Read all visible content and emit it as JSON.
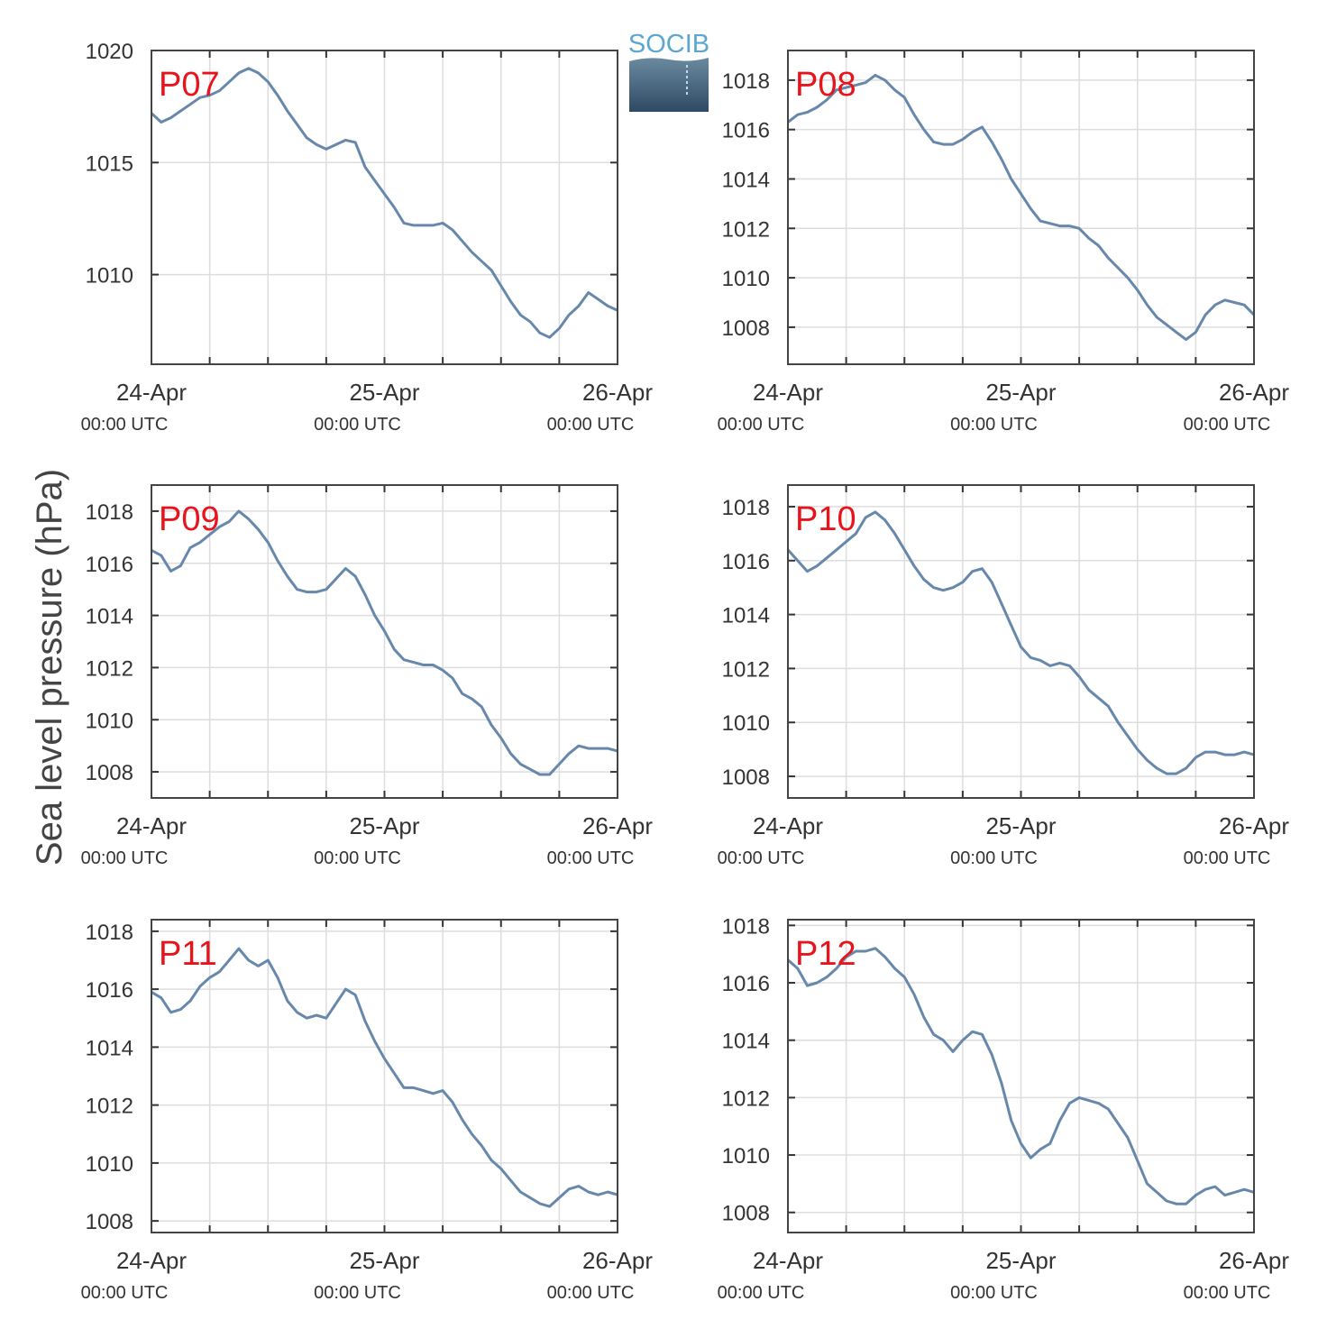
{
  "figure": {
    "ylabel": "Sea level pressure (hPa)",
    "logo_text": "SOCIB",
    "line_color": "#6788ab",
    "label_color": "#e8141c",
    "grid_color": "#dddddd"
  },
  "chart_data": [
    {
      "type": "line",
      "title": "P07",
      "xlim": [
        "24-Apr 00:00 UTC",
        "26-Apr 00:00 UTC"
      ],
      "xticks": [
        {
          "date": "24-Apr",
          "time": "00:00 UTC"
        },
        {
          "date": "25-Apr",
          "time": "00:00 UTC"
        },
        {
          "date": "26-Apr",
          "time": "00:00 UTC"
        }
      ],
      "ylim": [
        1006,
        1020
      ],
      "yticks": [
        1010,
        1015,
        1020
      ],
      "grid": true,
      "series": [
        {
          "x_hours": [
            0,
            1,
            2,
            3,
            4,
            5,
            6,
            7,
            8,
            9,
            10,
            11,
            12,
            13,
            14,
            15,
            16,
            17,
            18,
            19,
            20,
            21,
            22,
            23,
            24,
            25,
            26,
            27,
            28,
            29,
            30,
            31,
            32,
            33,
            34,
            35,
            36,
            37,
            38,
            39,
            40,
            41,
            42,
            43,
            44,
            45,
            46,
            47,
            48
          ],
          "values": [
            1017.2,
            1016.8,
            1017.0,
            1017.3,
            1017.6,
            1017.9,
            1018.0,
            1018.2,
            1018.6,
            1019.0,
            1019.2,
            1019.0,
            1018.6,
            1018.0,
            1017.3,
            1016.7,
            1016.1,
            1015.8,
            1015.6,
            1015.8,
            1016.0,
            1015.9,
            1014.8,
            1014.2,
            1013.6,
            1013.0,
            1012.3,
            1012.2,
            1012.2,
            1012.2,
            1012.3,
            1012.0,
            1011.5,
            1011.0,
            1010.6,
            1010.2,
            1009.5,
            1008.8,
            1008.2,
            1007.9,
            1007.4,
            1007.2,
            1007.6,
            1008.2,
            1008.6,
            1009.2,
            1008.9,
            1008.6,
            1008.4
          ]
        }
      ]
    },
    {
      "type": "line",
      "title": "P08",
      "xlim": [
        "24-Apr 00:00 UTC",
        "26-Apr 00:00 UTC"
      ],
      "xticks": [
        {
          "date": "24-Apr",
          "time": "00:00 UTC"
        },
        {
          "date": "25-Apr",
          "time": "00:00 UTC"
        },
        {
          "date": "26-Apr",
          "time": "00:00 UTC"
        }
      ],
      "ylim": [
        1006.5,
        1019.2
      ],
      "yticks": [
        1008,
        1010,
        1012,
        1014,
        1016,
        1018
      ],
      "grid": true,
      "series": [
        {
          "x_hours": [
            0,
            1,
            2,
            3,
            4,
            5,
            6,
            7,
            8,
            9,
            10,
            11,
            12,
            13,
            14,
            15,
            16,
            17,
            18,
            19,
            20,
            21,
            22,
            23,
            24,
            25,
            26,
            27,
            28,
            29,
            30,
            31,
            32,
            33,
            34,
            35,
            36,
            37,
            38,
            39,
            40,
            41,
            42,
            43,
            44,
            45,
            46,
            47,
            48
          ],
          "values": [
            1016.3,
            1016.6,
            1016.7,
            1016.9,
            1017.2,
            1017.6,
            1017.7,
            1017.8,
            1017.9,
            1018.2,
            1018.0,
            1017.6,
            1017.3,
            1016.6,
            1016.0,
            1015.5,
            1015.4,
            1015.4,
            1015.6,
            1015.9,
            1016.1,
            1015.5,
            1014.8,
            1014.0,
            1013.4,
            1012.8,
            1012.3,
            1012.2,
            1012.1,
            1012.1,
            1012.0,
            1011.6,
            1011.3,
            1010.8,
            1010.4,
            1010.0,
            1009.5,
            1008.9,
            1008.4,
            1008.1,
            1007.8,
            1007.5,
            1007.8,
            1008.5,
            1008.9,
            1009.1,
            1009.0,
            1008.9,
            1008.5
          ]
        }
      ]
    },
    {
      "type": "line",
      "title": "P09",
      "xlim": [
        "24-Apr 00:00 UTC",
        "26-Apr 00:00 UTC"
      ],
      "xticks": [
        {
          "date": "24-Apr",
          "time": "00:00 UTC"
        },
        {
          "date": "25-Apr",
          "time": "00:00 UTC"
        },
        {
          "date": "26-Apr",
          "time": "00:00 UTC"
        }
      ],
      "ylim": [
        1007,
        1019
      ],
      "yticks": [
        1008,
        1010,
        1012,
        1014,
        1016,
        1018
      ],
      "grid": true,
      "series": [
        {
          "x_hours": [
            0,
            1,
            2,
            3,
            4,
            5,
            6,
            7,
            8,
            9,
            10,
            11,
            12,
            13,
            14,
            15,
            16,
            17,
            18,
            19,
            20,
            21,
            22,
            23,
            24,
            25,
            26,
            27,
            28,
            29,
            30,
            31,
            32,
            33,
            34,
            35,
            36,
            37,
            38,
            39,
            40,
            41,
            42,
            43,
            44,
            45,
            46,
            47,
            48
          ],
          "values": [
            1016.5,
            1016.3,
            1015.7,
            1015.9,
            1016.6,
            1016.8,
            1017.1,
            1017.4,
            1017.6,
            1018.0,
            1017.7,
            1017.3,
            1016.8,
            1016.1,
            1015.5,
            1015.0,
            1014.9,
            1014.9,
            1015.0,
            1015.4,
            1015.8,
            1015.5,
            1014.8,
            1014.0,
            1013.4,
            1012.7,
            1012.3,
            1012.2,
            1012.1,
            1012.1,
            1011.9,
            1011.6,
            1011.0,
            1010.8,
            1010.5,
            1009.8,
            1009.3,
            1008.7,
            1008.3,
            1008.1,
            1007.9,
            1007.9,
            1008.3,
            1008.7,
            1009.0,
            1008.9,
            1008.9,
            1008.9,
            1008.8
          ]
        }
      ]
    },
    {
      "type": "line",
      "title": "P10",
      "xlim": [
        "24-Apr 00:00 UTC",
        "26-Apr 00:00 UTC"
      ],
      "xticks": [
        {
          "date": "24-Apr",
          "time": "00:00 UTC"
        },
        {
          "date": "25-Apr",
          "time": "00:00 UTC"
        },
        {
          "date": "26-Apr",
          "time": "00:00 UTC"
        }
      ],
      "ylim": [
        1007.2,
        1018.8
      ],
      "yticks": [
        1008,
        1010,
        1012,
        1014,
        1016,
        1018
      ],
      "grid": true,
      "series": [
        {
          "x_hours": [
            0,
            1,
            2,
            3,
            4,
            5,
            6,
            7,
            8,
            9,
            10,
            11,
            12,
            13,
            14,
            15,
            16,
            17,
            18,
            19,
            20,
            21,
            22,
            23,
            24,
            25,
            26,
            27,
            28,
            29,
            30,
            31,
            32,
            33,
            34,
            35,
            36,
            37,
            38,
            39,
            40,
            41,
            42,
            43,
            44,
            45,
            46,
            47,
            48
          ],
          "values": [
            1016.4,
            1016.0,
            1015.6,
            1015.8,
            1016.1,
            1016.4,
            1016.7,
            1017.0,
            1017.6,
            1017.8,
            1017.5,
            1017.0,
            1016.4,
            1015.8,
            1015.3,
            1015.0,
            1014.9,
            1015.0,
            1015.2,
            1015.6,
            1015.7,
            1015.2,
            1014.4,
            1013.6,
            1012.8,
            1012.4,
            1012.3,
            1012.1,
            1012.2,
            1012.1,
            1011.7,
            1011.2,
            1010.9,
            1010.6,
            1010.0,
            1009.5,
            1009.0,
            1008.6,
            1008.3,
            1008.1,
            1008.1,
            1008.3,
            1008.7,
            1008.9,
            1008.9,
            1008.8,
            1008.8,
            1008.9,
            1008.8
          ]
        }
      ]
    },
    {
      "type": "line",
      "title": "P11",
      "xlim": [
        "24-Apr 00:00 UTC",
        "26-Apr 00:00 UTC"
      ],
      "xticks": [
        {
          "date": "24-Apr",
          "time": "00:00 UTC"
        },
        {
          "date": "25-Apr",
          "time": "00:00 UTC"
        },
        {
          "date": "26-Apr",
          "time": "00:00 UTC"
        }
      ],
      "ylim": [
        1007.6,
        1018.4
      ],
      "yticks": [
        1008,
        1010,
        1012,
        1014,
        1016,
        1018
      ],
      "grid": true,
      "series": [
        {
          "x_hours": [
            0,
            1,
            2,
            3,
            4,
            5,
            6,
            7,
            8,
            9,
            10,
            11,
            12,
            13,
            14,
            15,
            16,
            17,
            18,
            19,
            20,
            21,
            22,
            23,
            24,
            25,
            26,
            27,
            28,
            29,
            30,
            31,
            32,
            33,
            34,
            35,
            36,
            37,
            38,
            39,
            40,
            41,
            42,
            43,
            44,
            45,
            46,
            47,
            48
          ],
          "values": [
            1015.9,
            1015.7,
            1015.2,
            1015.3,
            1015.6,
            1016.1,
            1016.4,
            1016.6,
            1017.0,
            1017.4,
            1017.0,
            1016.8,
            1017.0,
            1016.4,
            1015.6,
            1015.2,
            1015.0,
            1015.1,
            1015.0,
            1015.5,
            1016.0,
            1015.8,
            1014.9,
            1014.2,
            1013.6,
            1013.1,
            1012.6,
            1012.6,
            1012.5,
            1012.4,
            1012.5,
            1012.1,
            1011.5,
            1011.0,
            1010.6,
            1010.1,
            1009.8,
            1009.4,
            1009.0,
            1008.8,
            1008.6,
            1008.5,
            1008.8,
            1009.1,
            1009.2,
            1009.0,
            1008.9,
            1009.0,
            1008.9
          ]
        }
      ]
    },
    {
      "type": "line",
      "title": "P12",
      "xlim": [
        "24-Apr 00:00 UTC",
        "26-Apr 00:00 UTC"
      ],
      "xticks": [
        {
          "date": "24-Apr",
          "time": "00:00 UTC"
        },
        {
          "date": "25-Apr",
          "time": "00:00 UTC"
        },
        {
          "date": "26-Apr",
          "time": "00:00 UTC"
        }
      ],
      "ylim": [
        1007.3,
        1018.2
      ],
      "yticks": [
        1008,
        1010,
        1012,
        1014,
        1016,
        1018
      ],
      "grid": true,
      "series": [
        {
          "x_hours": [
            0,
            1,
            2,
            3,
            4,
            5,
            6,
            7,
            8,
            9,
            10,
            11,
            12,
            13,
            14,
            15,
            16,
            17,
            18,
            19,
            20,
            21,
            22,
            23,
            24,
            25,
            26,
            27,
            28,
            29,
            30,
            31,
            32,
            33,
            34,
            35,
            36,
            37,
            38,
            39,
            40,
            41,
            42,
            43,
            44,
            45,
            46,
            47,
            48
          ],
          "values": [
            1016.8,
            1016.5,
            1015.9,
            1016.0,
            1016.2,
            1016.5,
            1016.9,
            1017.1,
            1017.1,
            1017.2,
            1016.9,
            1016.5,
            1016.2,
            1015.6,
            1014.8,
            1014.2,
            1014.0,
            1013.6,
            1014.0,
            1014.3,
            1014.2,
            1013.5,
            1012.5,
            1011.2,
            1010.4,
            1009.9,
            1010.2,
            1010.4,
            1011.2,
            1011.8,
            1012.0,
            1011.9,
            1011.8,
            1011.6,
            1011.1,
            1010.6,
            1009.8,
            1009.0,
            1008.7,
            1008.4,
            1008.3,
            1008.3,
            1008.6,
            1008.8,
            1008.9,
            1008.6,
            1008.7,
            1008.8,
            1008.7
          ]
        }
      ]
    }
  ]
}
